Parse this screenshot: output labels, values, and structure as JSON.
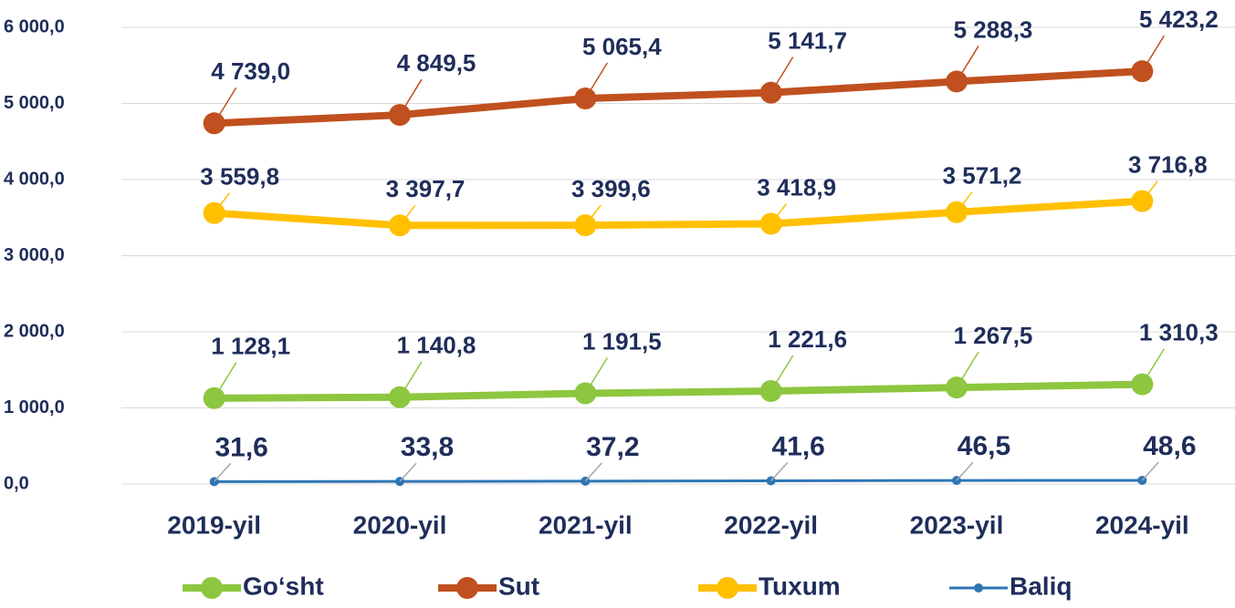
{
  "chart_data": {
    "type": "line",
    "categories": [
      "2019-yil",
      "2020-yil",
      "2021-yil",
      "2022-yil",
      "2023-yil",
      "2024-yil"
    ],
    "series": [
      {
        "name": "Go‘sht",
        "color": "#8dc63f",
        "values": [
          1128.1,
          1140.8,
          1191.5,
          1221.6,
          1267.5,
          1310.3
        ],
        "value_labels": [
          "1 128,1",
          "1 140,8",
          "1 191,5",
          "1 221,6",
          "1 267,5",
          "1 310,3"
        ]
      },
      {
        "name": "Sut",
        "color": "#c0501f",
        "values": [
          4739.0,
          4849.5,
          5065.4,
          5141.7,
          5288.3,
          5423.2
        ],
        "value_labels": [
          "4 739,0",
          "4 849,5",
          "5 065,4",
          "5 141,7",
          "5 288,3",
          "5 423,2"
        ]
      },
      {
        "name": "Tuxum",
        "color": "#ffc000",
        "values": [
          3559.8,
          3397.7,
          3399.6,
          3418.9,
          3571.2,
          3716.8
        ],
        "value_labels": [
          "3 559,8",
          "3 397,7",
          "3 399,6",
          "3 418,9",
          "3 571,2",
          "3 716,8"
        ]
      },
      {
        "name": "Baliq",
        "color": "#2e75b6",
        "values": [
          31.6,
          33.8,
          37.2,
          41.6,
          46.5,
          48.6
        ],
        "value_labels": [
          "31,6",
          "33,8",
          "37,2",
          "41,6",
          "46,5",
          "48,6"
        ]
      }
    ],
    "ylim": [
      0,
      6000
    ],
    "yticks": [
      {
        "value": 0,
        "label": "0,0"
      },
      {
        "value": 1000,
        "label": "1 000,0"
      },
      {
        "value": 2000,
        "label": "2 000,0"
      },
      {
        "value": 3000,
        "label": "3 000,0"
      },
      {
        "value": 4000,
        "label": "4 000,0"
      },
      {
        "value": 5000,
        "label": "5 000,0"
      },
      {
        "value": 6000,
        "label": "6 000,0"
      }
    ],
    "grid": true,
    "legend": "bottom"
  }
}
